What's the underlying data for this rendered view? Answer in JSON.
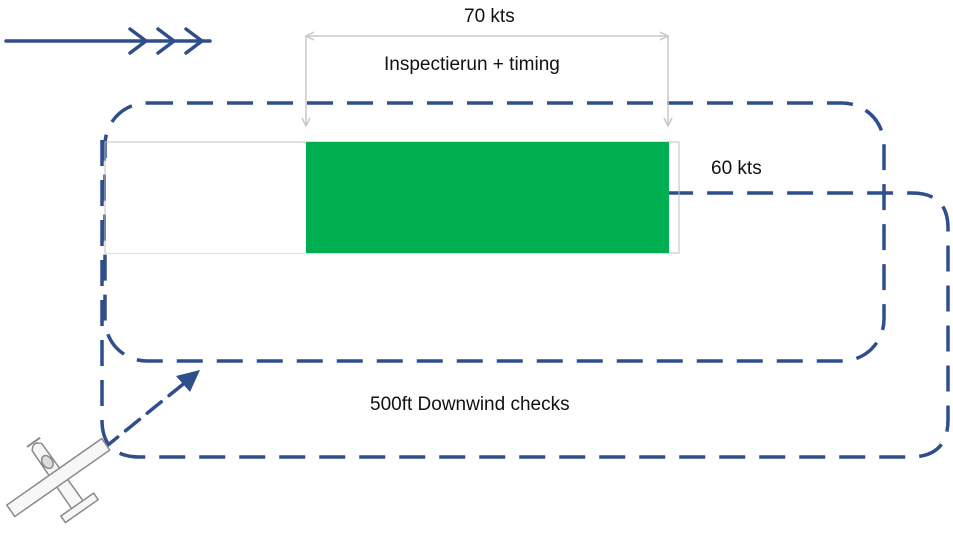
{
  "labels": {
    "speed_top": "70 kts",
    "phase_top": "Inspectierun + timing",
    "speed_right": "60 kts",
    "phase_bottom": "500ft Downwind checks"
  },
  "icons": {
    "wind": "triple-chevron-arrow-icon",
    "aircraft": "light-aircraft-icon"
  },
  "colors": {
    "pattern_line": "#2f4e8c",
    "runway_highlight": "#00b050",
    "runway_outline": "#bfbfbf",
    "dimension_line": "#c8c8c8",
    "text": "#111111"
  }
}
